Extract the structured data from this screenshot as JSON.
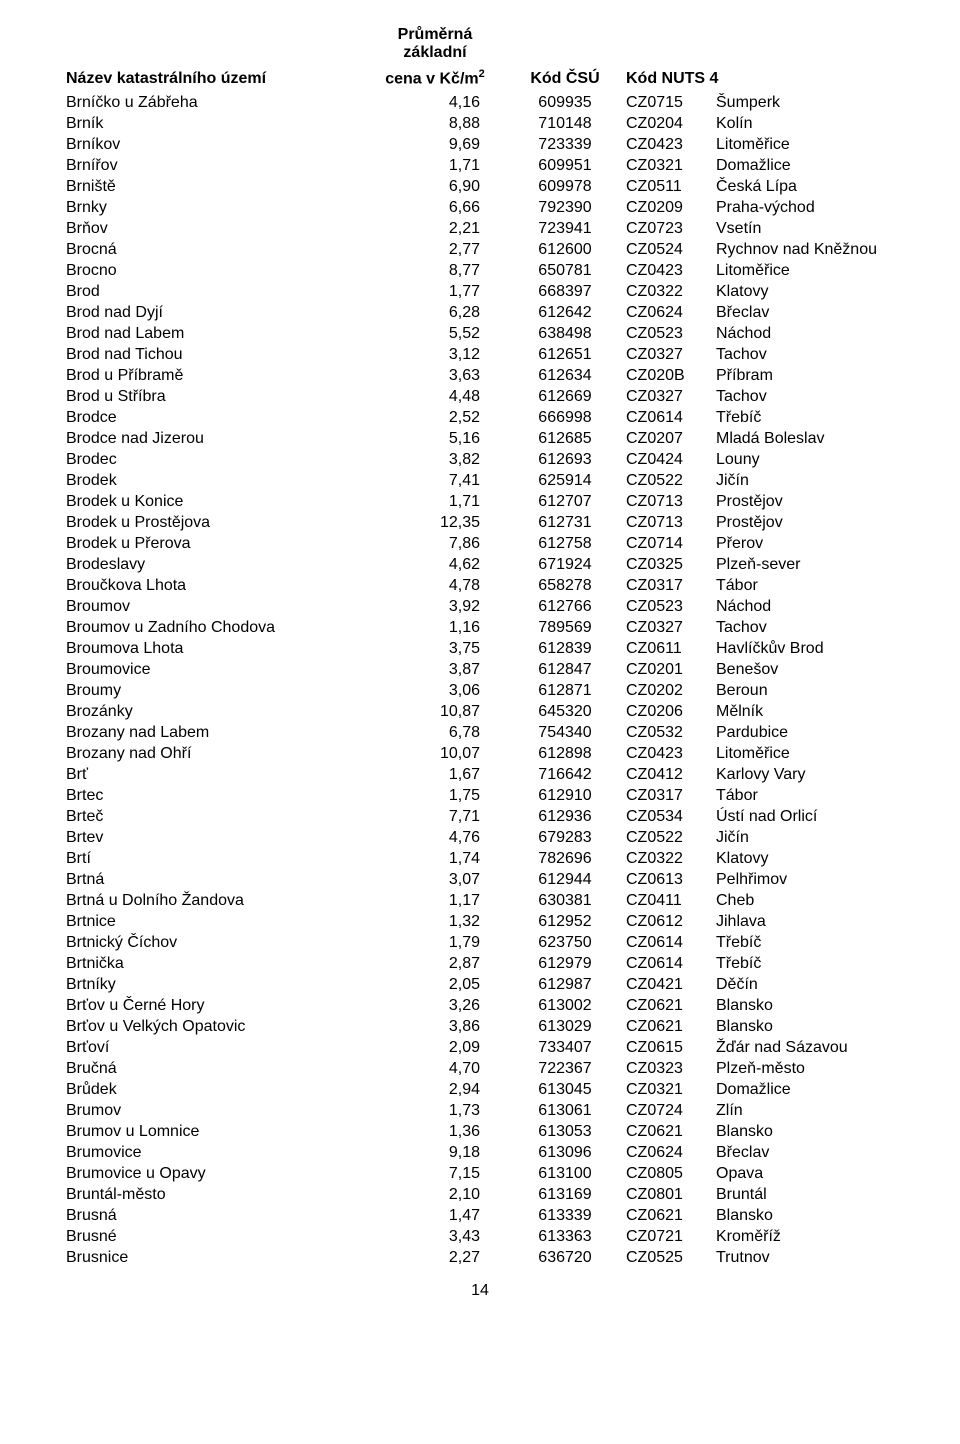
{
  "headers": {
    "name": "Název katastrálního území",
    "price_l1": "Průměrná základní",
    "price_l2": "cena v Kč/m",
    "price_exp": "2",
    "code": "Kód ČSÚ",
    "nuts": "Kód NUTS 4"
  },
  "page_number": "14",
  "rows": [
    {
      "n": "Brníčko u Zábřeha",
      "p": "4,16",
      "c": "609935",
      "u": "CZ0715",
      "r": "Šumperk"
    },
    {
      "n": "Brník",
      "p": "8,88",
      "c": "710148",
      "u": "CZ0204",
      "r": "Kolín"
    },
    {
      "n": "Brníkov",
      "p": "9,69",
      "c": "723339",
      "u": "CZ0423",
      "r": "Litoměřice"
    },
    {
      "n": "Brnířov",
      "p": "1,71",
      "c": "609951",
      "u": "CZ0321",
      "r": "Domažlice"
    },
    {
      "n": "Brniště",
      "p": "6,90",
      "c": "609978",
      "u": "CZ0511",
      "r": "Česká Lípa"
    },
    {
      "n": "Brnky",
      "p": "6,66",
      "c": "792390",
      "u": "CZ0209",
      "r": "Praha-východ"
    },
    {
      "n": "Brňov",
      "p": "2,21",
      "c": "723941",
      "u": "CZ0723",
      "r": "Vsetín"
    },
    {
      "n": "Brocná",
      "p": "2,77",
      "c": "612600",
      "u": "CZ0524",
      "r": "Rychnov nad Kněžnou"
    },
    {
      "n": "Brocno",
      "p": "8,77",
      "c": "650781",
      "u": "CZ0423",
      "r": "Litoměřice"
    },
    {
      "n": "Brod",
      "p": "1,77",
      "c": "668397",
      "u": "CZ0322",
      "r": "Klatovy"
    },
    {
      "n": "Brod nad Dyjí",
      "p": "6,28",
      "c": "612642",
      "u": "CZ0624",
      "r": "Břeclav"
    },
    {
      "n": "Brod nad Labem",
      "p": "5,52",
      "c": "638498",
      "u": "CZ0523",
      "r": "Náchod"
    },
    {
      "n": "Brod nad Tichou",
      "p": "3,12",
      "c": "612651",
      "u": "CZ0327",
      "r": "Tachov"
    },
    {
      "n": "Brod u Příbramě",
      "p": "3,63",
      "c": "612634",
      "u": "CZ020B",
      "r": "Příbram"
    },
    {
      "n": "Brod u Stříbra",
      "p": "4,48",
      "c": "612669",
      "u": "CZ0327",
      "r": "Tachov"
    },
    {
      "n": "Brodce",
      "p": "2,52",
      "c": "666998",
      "u": "CZ0614",
      "r": "Třebíč"
    },
    {
      "n": "Brodce nad Jizerou",
      "p": "5,16",
      "c": "612685",
      "u": "CZ0207",
      "r": "Mladá Boleslav"
    },
    {
      "n": "Brodec",
      "p": "3,82",
      "c": "612693",
      "u": "CZ0424",
      "r": "Louny"
    },
    {
      "n": "Brodek",
      "p": "7,41",
      "c": "625914",
      "u": "CZ0522",
      "r": "Jičín"
    },
    {
      "n": "Brodek u Konice",
      "p": "1,71",
      "c": "612707",
      "u": "CZ0713",
      "r": "Prostějov"
    },
    {
      "n": "Brodek u Prostějova",
      "p": "12,35",
      "c": "612731",
      "u": "CZ0713",
      "r": "Prostějov"
    },
    {
      "n": "Brodek u Přerova",
      "p": "7,86",
      "c": "612758",
      "u": "CZ0714",
      "r": "Přerov"
    },
    {
      "n": "Brodeslavy",
      "p": "4,62",
      "c": "671924",
      "u": "CZ0325",
      "r": "Plzeň-sever"
    },
    {
      "n": "Broučkova Lhota",
      "p": "4,78",
      "c": "658278",
      "u": "CZ0317",
      "r": "Tábor"
    },
    {
      "n": "Broumov",
      "p": "3,92",
      "c": "612766",
      "u": "CZ0523",
      "r": "Náchod"
    },
    {
      "n": "Broumov u Zadního Chodova",
      "p": "1,16",
      "c": "789569",
      "u": "CZ0327",
      "r": "Tachov"
    },
    {
      "n": "Broumova Lhota",
      "p": "3,75",
      "c": "612839",
      "u": "CZ0611",
      "r": "Havlíčkův Brod"
    },
    {
      "n": "Broumovice",
      "p": "3,87",
      "c": "612847",
      "u": "CZ0201",
      "r": "Benešov"
    },
    {
      "n": "Broumy",
      "p": "3,06",
      "c": "612871",
      "u": "CZ0202",
      "r": "Beroun"
    },
    {
      "n": "Brozánky",
      "p": "10,87",
      "c": "645320",
      "u": "CZ0206",
      "r": "Mělník"
    },
    {
      "n": "Brozany nad Labem",
      "p": "6,78",
      "c": "754340",
      "u": "CZ0532",
      "r": "Pardubice"
    },
    {
      "n": "Brozany nad Ohří",
      "p": "10,07",
      "c": "612898",
      "u": "CZ0423",
      "r": "Litoměřice"
    },
    {
      "n": "Brť",
      "p": "1,67",
      "c": "716642",
      "u": "CZ0412",
      "r": "Karlovy Vary"
    },
    {
      "n": "Brtec",
      "p": "1,75",
      "c": "612910",
      "u": "CZ0317",
      "r": "Tábor"
    },
    {
      "n": "Brteč",
      "p": "7,71",
      "c": "612936",
      "u": "CZ0534",
      "r": "Ústí nad Orlicí"
    },
    {
      "n": "Brtev",
      "p": "4,76",
      "c": "679283",
      "u": "CZ0522",
      "r": "Jičín"
    },
    {
      "n": "Brtí",
      "p": "1,74",
      "c": "782696",
      "u": "CZ0322",
      "r": "Klatovy"
    },
    {
      "n": "Brtná",
      "p": "3,07",
      "c": "612944",
      "u": "CZ0613",
      "r": "Pelhřimov"
    },
    {
      "n": "Brtná u Dolního Žandova",
      "p": "1,17",
      "c": "630381",
      "u": "CZ0411",
      "r": "Cheb"
    },
    {
      "n": "Brtnice",
      "p": "1,32",
      "c": "612952",
      "u": "CZ0612",
      "r": "Jihlava"
    },
    {
      "n": "Brtnický Číchov",
      "p": "1,79",
      "c": "623750",
      "u": "CZ0614",
      "r": "Třebíč"
    },
    {
      "n": "Brtnička",
      "p": "2,87",
      "c": "612979",
      "u": "CZ0614",
      "r": "Třebíč"
    },
    {
      "n": "Brtníky",
      "p": "2,05",
      "c": "612987",
      "u": "CZ0421",
      "r": "Děčín"
    },
    {
      "n": "Brťov u Černé Hory",
      "p": "3,26",
      "c": "613002",
      "u": "CZ0621",
      "r": "Blansko"
    },
    {
      "n": "Brťov u Velkých Opatovic",
      "p": "3,86",
      "c": "613029",
      "u": "CZ0621",
      "r": "Blansko"
    },
    {
      "n": "Brťoví",
      "p": "2,09",
      "c": "733407",
      "u": "CZ0615",
      "r": "Žďár nad Sázavou"
    },
    {
      "n": "Bručná",
      "p": "4,70",
      "c": "722367",
      "u": "CZ0323",
      "r": "Plzeň-město"
    },
    {
      "n": "Brůdek",
      "p": "2,94",
      "c": "613045",
      "u": "CZ0321",
      "r": "Domažlice"
    },
    {
      "n": "Brumov",
      "p": "1,73",
      "c": "613061",
      "u": "CZ0724",
      "r": "Zlín"
    },
    {
      "n": "Brumov u Lomnice",
      "p": "1,36",
      "c": "613053",
      "u": "CZ0621",
      "r": "Blansko"
    },
    {
      "n": "Brumovice",
      "p": "9,18",
      "c": "613096",
      "u": "CZ0624",
      "r": "Břeclav"
    },
    {
      "n": "Brumovice u Opavy",
      "p": "7,15",
      "c": "613100",
      "u": "CZ0805",
      "r": "Opava"
    },
    {
      "n": "Bruntál-město",
      "p": "2,10",
      "c": "613169",
      "u": "CZ0801",
      "r": "Bruntál"
    },
    {
      "n": "Brusná",
      "p": "1,47",
      "c": "613339",
      "u": "CZ0621",
      "r": "Blansko"
    },
    {
      "n": "Brusné",
      "p": "3,43",
      "c": "613363",
      "u": "CZ0721",
      "r": "Kroměříž"
    },
    {
      "n": "Brusnice",
      "p": "2,27",
      "c": "636720",
      "u": "CZ0525",
      "r": "Trutnov"
    }
  ]
}
